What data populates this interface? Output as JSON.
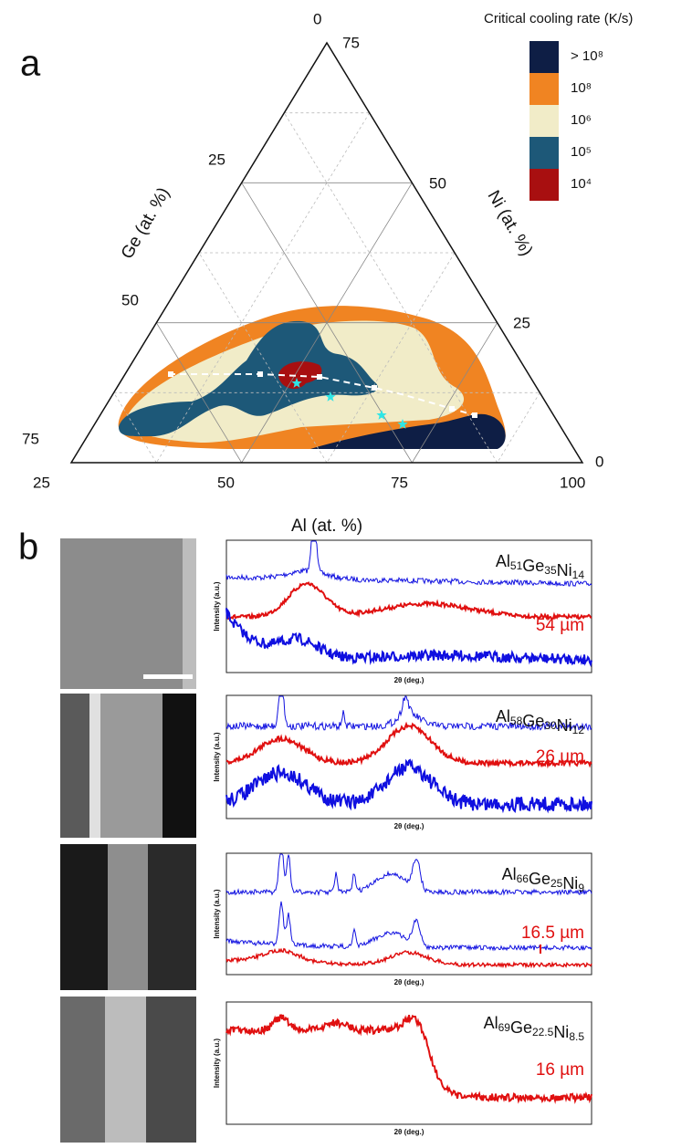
{
  "panel_a": {
    "label": "a",
    "top_tick": "0",
    "bottom_ticks": [
      "25",
      "50",
      "75",
      "100"
    ],
    "left_ticks": [
      "25",
      "50",
      "75"
    ],
    "right_ticks": [
      "75",
      "50",
      "25",
      "0"
    ],
    "bottom_axis_title": "Al (at. %)",
    "left_axis_title": "Ge (at. %)",
    "right_axis_title": "Ni (at. %)",
    "legend": {
      "title": "Critical cooling rate (K/s)",
      "items": [
        {
          "label": "> 10⁸",
          "color": "#0e1e45"
        },
        {
          "label": "10⁸",
          "color": "#f08422"
        },
        {
          "label": "10⁶",
          "color": "#f1ecc8"
        },
        {
          "label": "10⁵",
          "color": "#1d5878"
        },
        {
          "label": "10⁴",
          "color": "#a80f10"
        }
      ]
    }
  },
  "panel_b": {
    "label": "b",
    "rows": [
      {
        "formula": [
          {
            "el": "Al",
            "sub": "51"
          },
          {
            "el": "Ge",
            "sub": "35"
          },
          {
            "el": "Ni",
            "sub": "14"
          }
        ],
        "thickness": "54 µm",
        "x_label": "2θ (deg.)",
        "y_label": "Intensity (a.u.)"
      },
      {
        "formula": [
          {
            "el": "Al",
            "sub": "58"
          },
          {
            "el": "Ge",
            "sub": "30"
          },
          {
            "el": "Ni",
            "sub": "12"
          }
        ],
        "thickness": "26 µm",
        "x_label": "2θ (deg.)",
        "y_label": "Intensity (a.u.)"
      },
      {
        "formula": [
          {
            "el": "Al",
            "sub": "66"
          },
          {
            "el": "Ge",
            "sub": "25"
          },
          {
            "el": "Ni",
            "sub": "9"
          }
        ],
        "thickness": "16.5 µm",
        "x_label": "2θ (deg.)",
        "y_label": "Intensity (a.u.)"
      },
      {
        "formula": [
          {
            "el": "Al",
            "sub": "69"
          },
          {
            "el": "Ge",
            "sub": "22.5"
          },
          {
            "el": "Ni",
            "sub": "8.5"
          }
        ],
        "thickness": "16 µm",
        "x_label": "2θ (deg.)",
        "y_label": "Intensity (a.u.)"
      }
    ]
  }
}
